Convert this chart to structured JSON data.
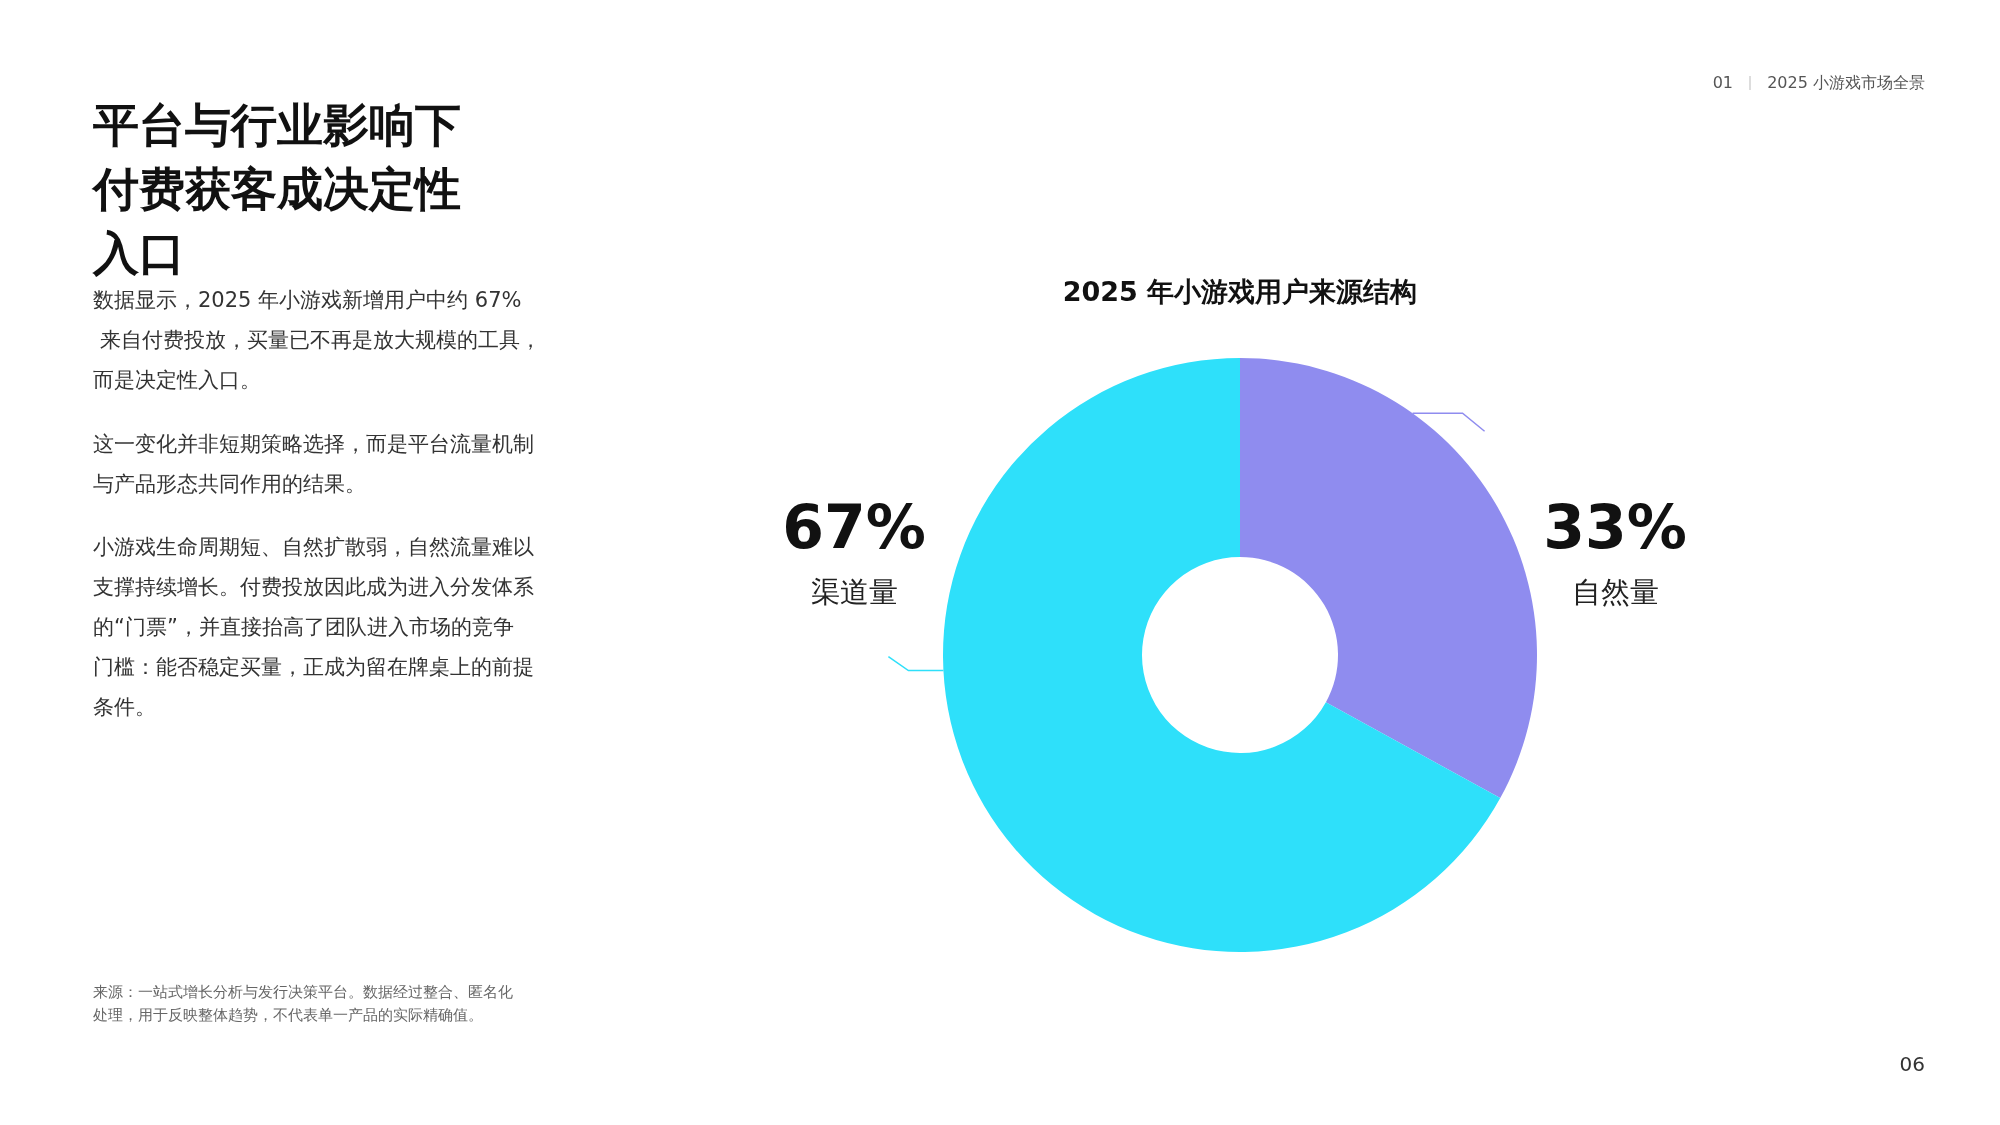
{
  "chart_data": {
    "type": "donut",
    "title": "2025 年小游戏用户来源结构",
    "categories": [
      "自然量",
      "渠道量"
    ],
    "values": [
      33,
      67
    ],
    "colors": [
      "#8f8cef",
      "#2ee0fa"
    ],
    "value_labels": [
      "33%",
      "67%"
    ],
    "annotations": [
      "01",
      "2025 小游戏市场全景",
      "平台与行业影响下付费获客成决定性入口",
      "数据显示，2025 年小游戏新增用户中约 67% 来自付费投放，买量已不再是放大规模的工具，而是决定性入口。",
      "这一变化并非短期策略选择，而是平台流量机制与产品形态共同作用的结果。",
      "小游戏生命周期短、自然扩散弱，自然流量难以支撑持续增长。付费投放因此成为进入分发体系的“门票”，并直接抬高了团队进入市场的竞争门槛：能否稳定买量，正成为留在牌桌上的前提条件。",
      "来源：一站式增长分析与发行决策平台。数据经过整合、匿名化处理，用于反映整体趋势，不代表单一产品的实际精确值。",
      "06"
    ]
  }
}
